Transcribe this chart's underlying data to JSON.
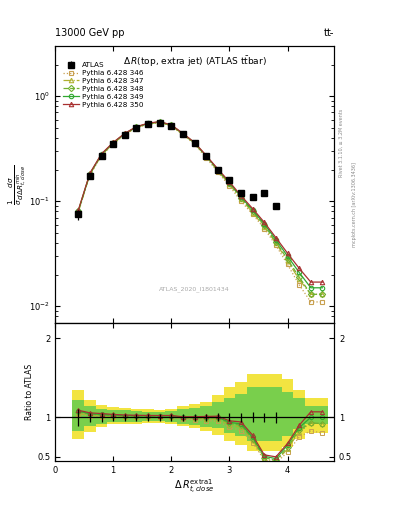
{
  "title_top_left": "13000 GeV pp",
  "title_top_right": "tt",
  "plot_title": "Δ R(top, extra jet) (ATLAS tτbar)",
  "xlabel": "Δ R_{t,close}^{extra1}",
  "watermark": "ATLAS_2020_I1801434",
  "rivet_label": "Rivet 3.1.10, ≥ 3.2M events",
  "mcplots_label": "mcplots.cern.ch [arXiv:1306.3436]",
  "x_data": [
    0.4,
    0.6,
    0.8,
    1.0,
    1.2,
    1.4,
    1.6,
    1.8,
    2.0,
    2.2,
    2.4,
    2.6,
    2.8,
    3.0,
    3.2,
    3.4,
    3.6,
    3.8,
    4.0,
    4.2,
    4.4,
    4.6
  ],
  "atlas_y": [
    0.075,
    0.175,
    0.27,
    0.35,
    0.43,
    0.5,
    0.54,
    0.56,
    0.52,
    0.44,
    0.36,
    0.27,
    0.2,
    0.16,
    0.12,
    0.11,
    0.12,
    0.09,
    null,
    null,
    null,
    null
  ],
  "atlas_yerr": [
    0.008,
    0.01,
    0.015,
    0.018,
    0.02,
    0.022,
    0.023,
    0.024,
    0.022,
    0.019,
    0.016,
    0.013,
    0.01,
    0.008,
    0.007,
    0.007,
    0.007,
    0.006,
    null,
    null,
    null,
    null
  ],
  "py346_y": [
    0.078,
    0.178,
    0.27,
    0.35,
    0.43,
    0.5,
    0.54,
    0.56,
    0.52,
    0.43,
    0.35,
    0.26,
    0.19,
    0.14,
    0.1,
    0.075,
    0.055,
    0.038,
    0.025,
    0.016,
    0.011,
    0.011
  ],
  "py347_y": [
    0.079,
    0.18,
    0.275,
    0.355,
    0.435,
    0.505,
    0.545,
    0.565,
    0.525,
    0.435,
    0.355,
    0.265,
    0.195,
    0.145,
    0.105,
    0.078,
    0.057,
    0.04,
    0.027,
    0.018,
    0.013,
    0.013
  ],
  "py348_y": [
    0.08,
    0.182,
    0.278,
    0.358,
    0.438,
    0.508,
    0.548,
    0.568,
    0.528,
    0.438,
    0.358,
    0.268,
    0.198,
    0.148,
    0.108,
    0.08,
    0.059,
    0.041,
    0.028,
    0.019,
    0.013,
    0.013
  ],
  "py349_y": [
    0.081,
    0.183,
    0.28,
    0.36,
    0.44,
    0.51,
    0.55,
    0.57,
    0.53,
    0.44,
    0.36,
    0.27,
    0.2,
    0.15,
    0.11,
    0.082,
    0.061,
    0.043,
    0.03,
    0.021,
    0.015,
    0.015
  ],
  "py350_y": [
    0.082,
    0.185,
    0.283,
    0.363,
    0.443,
    0.513,
    0.553,
    0.573,
    0.533,
    0.443,
    0.363,
    0.273,
    0.203,
    0.153,
    0.113,
    0.085,
    0.063,
    0.045,
    0.032,
    0.023,
    0.017,
    0.017
  ],
  "py346_ratio": [
    1.04,
    1.02,
    1.0,
    1.0,
    1.0,
    1.0,
    1.0,
    1.0,
    1.0,
    0.98,
    0.97,
    0.96,
    0.95,
    0.875,
    0.833,
    0.68,
    0.46,
    0.42,
    0.56,
    0.75,
    0.83,
    0.8
  ],
  "py347_ratio": [
    1.05,
    1.03,
    1.02,
    1.01,
    1.01,
    1.01,
    1.01,
    1.01,
    1.01,
    0.99,
    0.99,
    0.98,
    0.975,
    0.906,
    0.875,
    0.71,
    0.475,
    0.44,
    0.6,
    0.82,
    0.93,
    0.92
  ],
  "py348_ratio": [
    1.07,
    1.04,
    1.03,
    1.02,
    1.02,
    1.02,
    1.015,
    1.014,
    1.015,
    0.995,
    0.994,
    0.993,
    0.99,
    0.925,
    0.9,
    0.727,
    0.491,
    0.455,
    0.62,
    0.84,
    0.93,
    0.92
  ],
  "py349_ratio": [
    1.08,
    1.046,
    1.037,
    1.028,
    1.023,
    1.019,
    1.019,
    1.018,
    1.019,
    1.0,
    1.0,
    1.0,
    1.0,
    0.938,
    0.917,
    0.745,
    0.508,
    0.477,
    0.65,
    0.87,
    1.0,
    1.0
  ],
  "py350_ratio": [
    1.09,
    1.057,
    1.048,
    1.037,
    1.03,
    1.026,
    1.024,
    1.023,
    1.024,
    1.007,
    1.008,
    1.011,
    1.015,
    0.956,
    0.942,
    0.773,
    0.525,
    0.5,
    0.67,
    0.9,
    1.07,
    1.07
  ],
  "band_x_edges": [
    0.3,
    0.5,
    0.7,
    0.9,
    1.1,
    1.3,
    1.5,
    1.7,
    1.9,
    2.1,
    2.3,
    2.5,
    2.7,
    2.9,
    3.1,
    3.3,
    3.5,
    3.7,
    3.9,
    4.1,
    4.3,
    4.5,
    4.7
  ],
  "yellow_lo": [
    0.72,
    0.82,
    0.88,
    0.91,
    0.92,
    0.92,
    0.93,
    0.93,
    0.92,
    0.89,
    0.86,
    0.83,
    0.78,
    0.7,
    0.65,
    0.58,
    0.58,
    0.58,
    0.62,
    0.72,
    0.8,
    0.8
  ],
  "yellow_hi": [
    1.35,
    1.22,
    1.16,
    1.13,
    1.12,
    1.11,
    1.1,
    1.09,
    1.1,
    1.14,
    1.17,
    1.2,
    1.28,
    1.38,
    1.45,
    1.55,
    1.55,
    1.55,
    1.48,
    1.35,
    1.25,
    1.25
  ],
  "green_lo": [
    0.83,
    0.89,
    0.92,
    0.94,
    0.94,
    0.94,
    0.95,
    0.95,
    0.94,
    0.92,
    0.9,
    0.88,
    0.86,
    0.8,
    0.76,
    0.7,
    0.7,
    0.7,
    0.76,
    0.85,
    0.92,
    0.92
  ],
  "green_hi": [
    1.22,
    1.15,
    1.11,
    1.09,
    1.09,
    1.08,
    1.07,
    1.07,
    1.08,
    1.1,
    1.12,
    1.14,
    1.2,
    1.25,
    1.3,
    1.38,
    1.38,
    1.38,
    1.32,
    1.24,
    1.14,
    1.14
  ],
  "colors": {
    "py346": "#c8a050",
    "py347": "#b0b030",
    "py348": "#70b030",
    "py349": "#30a830",
    "py350": "#a83030"
  },
  "ylim_main": [
    0.007,
    3.0
  ],
  "ylim_ratio": [
    0.45,
    2.2
  ],
  "xlim": [
    0.0,
    4.8
  ]
}
